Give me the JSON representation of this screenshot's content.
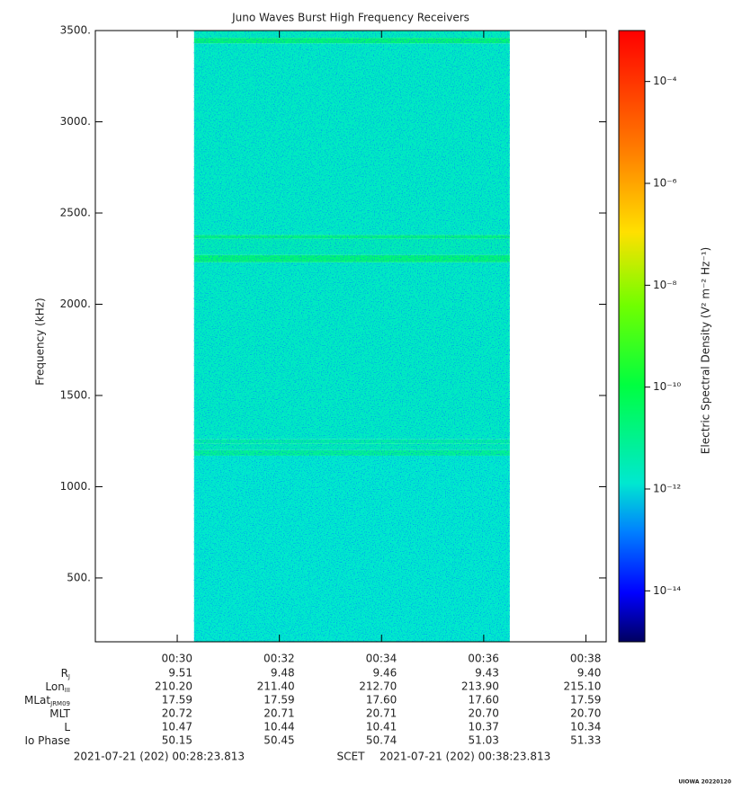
{
  "chart_data": {
    "type": "spectrogram",
    "title": "Juno Waves Burst High Frequency Receivers",
    "ylabel": "Frequency (kHz)",
    "xlim": [
      28.397,
      38.397
    ],
    "xticks": [
      {
        "value": 30,
        "label": "00:30"
      },
      {
        "value": 32,
        "label": "00:32"
      },
      {
        "value": 34,
        "label": "00:34"
      },
      {
        "value": 36,
        "label": "00:36"
      },
      {
        "value": 38,
        "label": "00:38"
      }
    ],
    "ylim": [
      150,
      3500
    ],
    "yticks": [
      {
        "value": 500,
        "label": "500."
      },
      {
        "value": 1000,
        "label": "1000."
      },
      {
        "value": 1500,
        "label": "1500."
      },
      {
        "value": 2000,
        "label": "2000."
      },
      {
        "value": 2500,
        "label": "2500."
      },
      {
        "value": 3000,
        "label": "3000."
      },
      {
        "value": 3500,
        "label": "3500."
      }
    ],
    "time_span": [
      30.33,
      36.51
    ],
    "ybins": [
      150,
      1170,
      1200,
      1235,
      1260,
      2230,
      2270,
      2360,
      2380,
      3430,
      3460,
      3500
    ],
    "values": [
      1.5e-12,
      8e-12,
      3e-12,
      5e-12,
      2e-12,
      2e-11,
      3e-12,
      1.5e-11,
      2e-12,
      2e-11,
      2.5e-12
    ],
    "colorbar": {
      "label": "Electric Spectral Density (V² m⁻² Hz⁻¹)",
      "log": true,
      "zlim": [
        1e-15,
        0.001
      ],
      "ticks": [
        {
          "value": 1e-14,
          "label": "10⁻¹⁴"
        },
        {
          "value": 1e-12,
          "label": "10⁻¹²"
        },
        {
          "value": 1e-10,
          "label": "10⁻¹⁰"
        },
        {
          "value": 1e-08,
          "label": "10⁻⁸"
        },
        {
          "value": 1e-06,
          "label": "10⁻⁶"
        },
        {
          "value": 0.0001,
          "label": "10⁻⁴"
        }
      ],
      "colormap": [
        [
          0,
          "#000060"
        ],
        [
          0.08,
          "#0000ff"
        ],
        [
          0.18,
          "#0080ff"
        ],
        [
          0.26,
          "#00e8d0"
        ],
        [
          0.42,
          "#00ff40"
        ],
        [
          0.55,
          "#70ff00"
        ],
        [
          0.67,
          "#ffe000"
        ],
        [
          0.8,
          "#ff8000"
        ],
        [
          1,
          "#ff0000"
        ]
      ]
    },
    "ephemeris": [
      {
        "label": "R",
        "sub": "J",
        "values": [
          "9.51",
          "9.48",
          "9.46",
          "9.43",
          "9.40"
        ]
      },
      {
        "label": "Lon",
        "sub": "III",
        "values": [
          "210.20",
          "211.40",
          "212.70",
          "213.90",
          "215.10"
        ]
      },
      {
        "label": "MLat",
        "sub": "JRM09",
        "values": [
          "17.59",
          "17.59",
          "17.60",
          "17.60",
          "17.59"
        ]
      },
      {
        "label": "MLT",
        "sub": "",
        "values": [
          "20.72",
          "20.71",
          "20.71",
          "20.70",
          "20.70"
        ]
      },
      {
        "label": "L",
        "sub": "",
        "values": [
          "10.47",
          "10.44",
          "10.41",
          "10.37",
          "10.34"
        ]
      },
      {
        "label": "Io Phase",
        "sub": "",
        "values": [
          "50.15",
          "50.45",
          "50.74",
          "51.03",
          "51.33"
        ]
      }
    ],
    "footer": [
      "2021-07-21 (202) 00:28:23.813",
      "SCET",
      "2021-07-21 (202) 00:38:23.813"
    ],
    "stamp": "UIOWA 20220120"
  }
}
